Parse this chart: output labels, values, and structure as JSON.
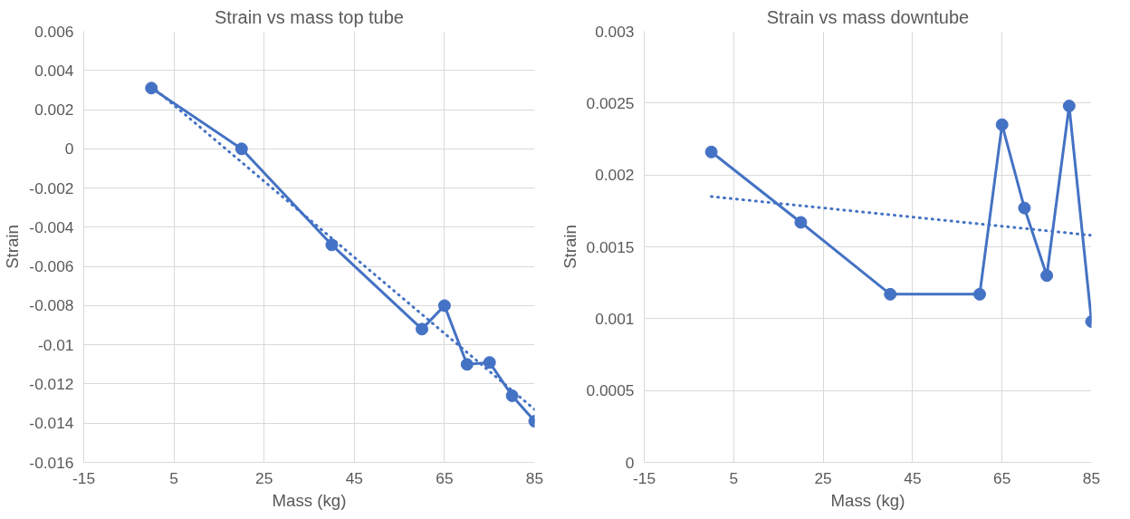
{
  "chart_data": [
    {
      "type": "line",
      "title": "Strain vs mass top tube",
      "xlabel": "Mass (kg)",
      "ylabel": "Strain",
      "xlim": [
        -15,
        85
      ],
      "xticks": [
        -15,
        5,
        25,
        45,
        65,
        85
      ],
      "ylim": [
        -0.016,
        0.006
      ],
      "yticks": [
        -0.016,
        -0.014,
        -0.012,
        -0.01,
        -0.008,
        -0.006,
        -0.004,
        -0.002,
        0,
        0.002,
        0.004,
        0.006
      ],
      "grid": true,
      "marker": "circle",
      "line_style": "solid",
      "series": [
        {
          "color": "#4472c4",
          "x": [
            0,
            20,
            40,
            60,
            65,
            70,
            75,
            80,
            85
          ],
          "values": [
            0.0031,
            0.0,
            -0.0049,
            -0.0092,
            -0.008,
            -0.011,
            -0.0109,
            -0.0126,
            -0.0139
          ]
        },
        {
          "color": "#4472c4",
          "marker": "none",
          "line_style": "dotted",
          "x": [
            0,
            85
          ],
          "values": [
            0.0032,
            -0.0133
          ]
        }
      ]
    },
    {
      "type": "line",
      "title": "Strain vs mass downtube",
      "xlabel": "Mass (kg)",
      "ylabel": "Strain",
      "xlim": [
        -15,
        85
      ],
      "xticks": [
        -15,
        5,
        25,
        45,
        65,
        85
      ],
      "ylim": [
        0,
        0.003
      ],
      "yticks": [
        0,
        0.0005,
        0.001,
        0.0015,
        0.002,
        0.0025,
        0.003
      ],
      "grid": true,
      "marker": "circle",
      "line_style": "solid",
      "series": [
        {
          "color": "#4472c4",
          "x": [
            0,
            20,
            40,
            60,
            65,
            70,
            75,
            80,
            85
          ],
          "values": [
            0.00216,
            0.00167,
            0.00117,
            0.00117,
            0.00235,
            0.00177,
            0.0013,
            0.00248,
            0.00098
          ]
        },
        {
          "color": "#4472c4",
          "marker": "none",
          "line_style": "dotted",
          "x": [
            0,
            85
          ],
          "values": [
            0.00185,
            0.00158
          ]
        }
      ]
    }
  ]
}
